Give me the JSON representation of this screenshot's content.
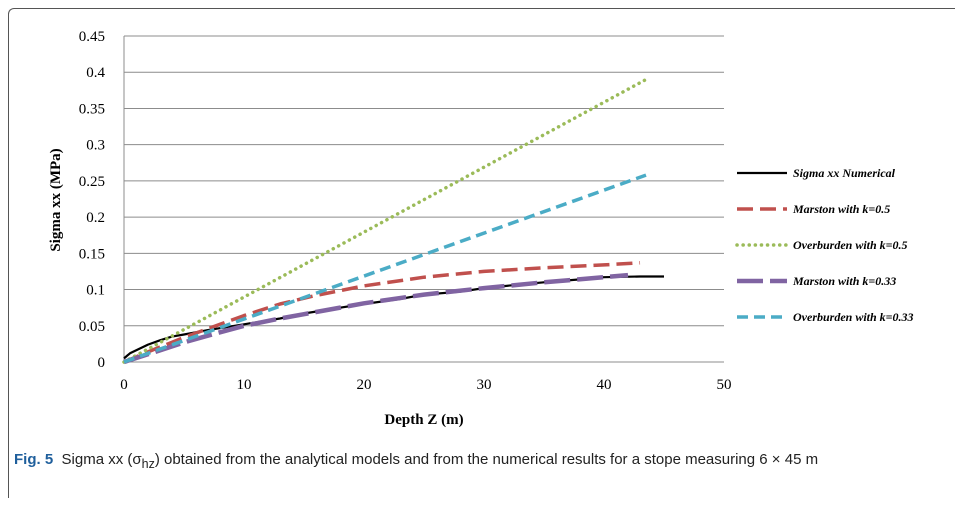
{
  "chart_data": {
    "type": "line",
    "xlabel": "Depth Z (m)",
    "ylabel": "Sigma xx (MPa)",
    "xlim": [
      0,
      50
    ],
    "ylim": [
      0,
      0.45
    ],
    "xticks": [
      "0",
      "10",
      "20",
      "30",
      "40",
      "50"
    ],
    "yticks": [
      "0",
      "0.05",
      "0.1",
      "0.15",
      "0.2",
      "0.25",
      "0.3",
      "0.35",
      "0.4",
      "0.45"
    ],
    "grid": "horizontal",
    "legend_position": "right",
    "series": [
      {
        "name": "Sigma xx Numerical",
        "color": "#000000",
        "style": "solid",
        "x": [
          0,
          0.5,
          1,
          2,
          3,
          4,
          5,
          7,
          10,
          13,
          15,
          18,
          20,
          23,
          25,
          28,
          30,
          33,
          35,
          38,
          40,
          43,
          45
        ],
        "y": [
          0.005,
          0.012,
          0.016,
          0.024,
          0.03,
          0.035,
          0.038,
          0.044,
          0.052,
          0.06,
          0.067,
          0.075,
          0.08,
          0.087,
          0.093,
          0.097,
          0.102,
          0.107,
          0.11,
          0.114,
          0.117,
          0.118,
          0.118
        ]
      },
      {
        "name": "Marston with k=0.5",
        "color": "#c0504d",
        "style": "long-dash",
        "x": [
          0,
          2,
          5,
          8,
          10,
          13,
          16,
          20,
          25,
          30,
          35,
          40,
          43
        ],
        "y": [
          0,
          0.014,
          0.034,
          0.052,
          0.064,
          0.08,
          0.092,
          0.105,
          0.117,
          0.125,
          0.13,
          0.134,
          0.137
        ]
      },
      {
        "name": "Overburden with k=0.5",
        "color": "#9bbb59",
        "style": "dotted",
        "x": [
          0,
          43.5
        ],
        "y": [
          0,
          0.39
        ]
      },
      {
        "name": "Marston with k=0.33",
        "color": "#8064a2",
        "style": "thick-dash",
        "x": [
          0,
          3,
          5,
          8,
          10,
          13,
          15,
          20,
          25,
          30,
          35,
          40,
          42
        ],
        "y": [
          0,
          0.016,
          0.027,
          0.041,
          0.05,
          0.06,
          0.066,
          0.081,
          0.093,
          0.102,
          0.11,
          0.117,
          0.12
        ]
      },
      {
        "name": "Overburden with k=0.33",
        "color": "#4bacc6",
        "style": "dash",
        "x": [
          0,
          43.5
        ],
        "y": [
          0,
          0.258
        ]
      }
    ]
  },
  "caption": {
    "label": "Fig. 5",
    "text": "Sigma xx (σ",
    "subscript": "hz",
    "text_after": ") obtained from the analytical models and from the numerical results for a stope measuring 6 × 45 m"
  }
}
